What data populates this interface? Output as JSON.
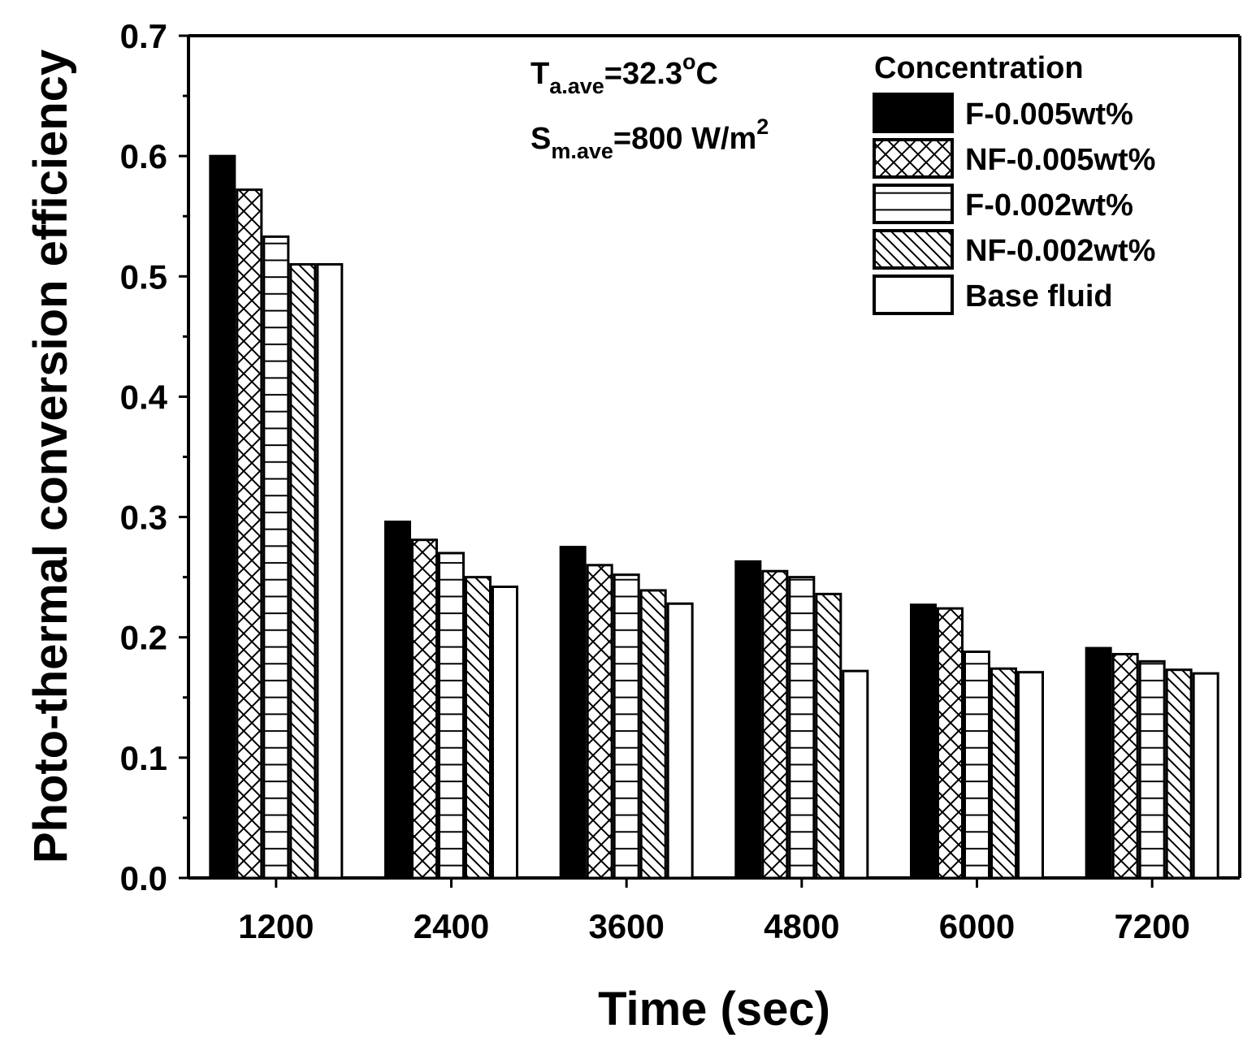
{
  "chart_data": {
    "type": "bar",
    "xlabel": "Time (sec)",
    "ylabel": "Photo-thermal conversion efficiency",
    "ylim": [
      0,
      0.7
    ],
    "yticks": [
      "0.0",
      "0.1",
      "0.2",
      "0.3",
      "0.4",
      "0.5",
      "0.6",
      "0.7"
    ],
    "categories": [
      "1200",
      "2400",
      "3600",
      "4800",
      "6000",
      "7200"
    ],
    "series": [
      {
        "name": "F-0.005wt%",
        "pattern": "solid",
        "values": [
          0.6,
          0.296,
          0.275,
          0.263,
          0.227,
          0.191
        ]
      },
      {
        "name": "NF-0.005wt%",
        "pattern": "crosshatch",
        "values": [
          0.572,
          0.281,
          0.26,
          0.255,
          0.224,
          0.186
        ]
      },
      {
        "name": "F-0.002wt%",
        "pattern": "horizontal",
        "values": [
          0.533,
          0.27,
          0.252,
          0.25,
          0.188,
          0.18
        ]
      },
      {
        "name": "NF-0.002wt%",
        "pattern": "diagonal",
        "values": [
          0.51,
          0.25,
          0.239,
          0.236,
          0.174,
          0.173
        ]
      },
      {
        "name": "Base fluid",
        "pattern": "empty",
        "values": [
          0.51,
          0.242,
          0.228,
          0.172,
          0.171,
          0.17
        ]
      }
    ],
    "legend_title": "Concentration",
    "legend_position": "top-right",
    "annotations": {
      "t_main": "T",
      "t_sub": "a.ave",
      "t_value": "=32.3",
      "t_sup": "o",
      "t_unit": "C",
      "s_main": "S",
      "s_sub": "m.ave",
      "s_value": "=800 W/m",
      "s_sup": "2"
    }
  },
  "colors": {
    "axis": "#000000",
    "bar_fill": "#ffffff",
    "solid": "#000000"
  }
}
